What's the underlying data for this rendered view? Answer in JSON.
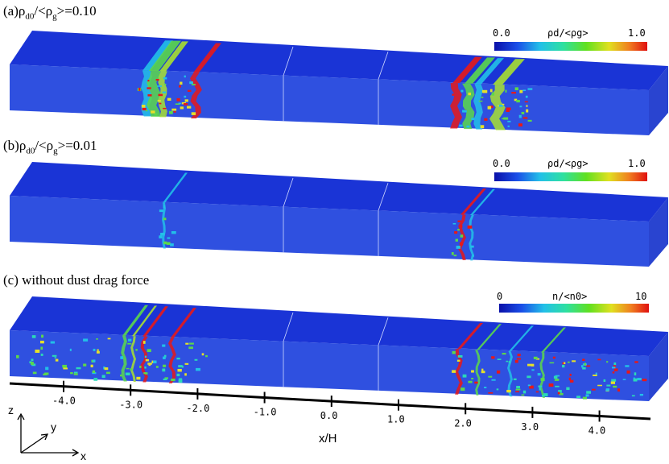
{
  "panels": [
    {
      "id": "a",
      "label_prefix": "(a)",
      "label_symbol": "ρ",
      "label_sub1": "d0",
      "label_mid": "/<ρ",
      "label_sub2": "g",
      "label_suffix": ">=0.10",
      "colorbar": {
        "min": "0.0",
        "max": "1.0",
        "title": "ρd/<ρg>"
      },
      "dust_level": "high"
    },
    {
      "id": "b",
      "label_prefix": "(b)",
      "label_symbol": "ρ",
      "label_sub1": "d0",
      "label_mid": "/<ρ",
      "label_sub2": "g",
      "label_suffix": ">=0.01",
      "colorbar": {
        "min": "0.0",
        "max": "1.0",
        "title": "ρd/<ρg>"
      },
      "dust_level": "low"
    },
    {
      "id": "c",
      "label_text": "(c) without dust drag force",
      "colorbar": {
        "min": "0",
        "max": "10",
        "title": "n/<n0>"
      },
      "dust_level": "passive"
    }
  ],
  "x_axis": {
    "title": "x/H",
    "ticks": [
      "-4.0",
      "-3.0",
      "-2.0",
      "-1.0",
      "0.0",
      "1.0",
      "2.0",
      "3.0",
      "4.0"
    ]
  },
  "coord_axes": {
    "z": "z",
    "y": "y",
    "x": "x"
  },
  "colors": {
    "box_front": "#2f50e0",
    "box_top": "#1a34d6",
    "box_side": "#2944d0",
    "colormap": [
      "#0a10a8",
      "#1a4ee8",
      "#22c0e8",
      "#2ee0a0",
      "#60e020",
      "#e0e020",
      "#f08020",
      "#e01010"
    ]
  }
}
